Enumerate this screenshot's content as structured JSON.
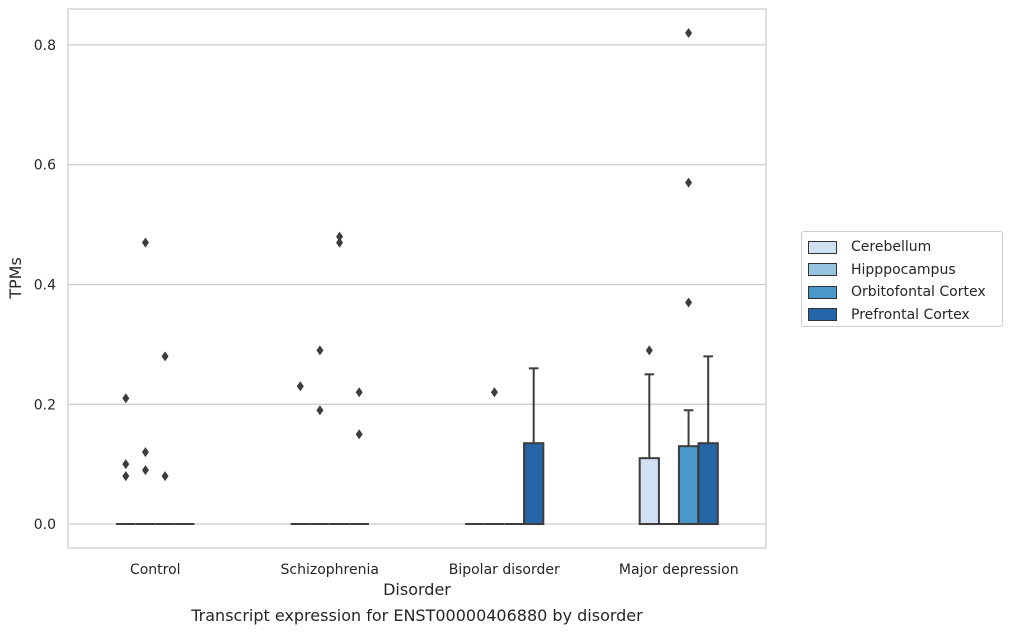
{
  "chart_data": {
    "type": "box",
    "title": "",
    "caption": "Transcript expression for ENST00000406880 by disorder",
    "xlabel": "Disorder",
    "ylabel": "TPMs",
    "ylim": [
      -0.04,
      0.86
    ],
    "yticks": [
      "0.0",
      "0.2",
      "0.4",
      "0.6",
      "0.8"
    ],
    "grid": "horizontal",
    "legend_position": "right",
    "categories": [
      "Control",
      "Schizophrenia",
      "Bipolar disorder",
      "Major depression"
    ],
    "series": [
      {
        "name": "Cerebellum",
        "color": "#d0e1f2",
        "boxes": [
          {
            "q1": 0,
            "q3": 0,
            "median": 0,
            "whisker_high": 0,
            "outliers": [
              0.1,
              0.08,
              0.21
            ]
          },
          {
            "q1": 0,
            "q3": 0,
            "median": 0,
            "whisker_high": 0,
            "outliers": [
              0.23
            ]
          },
          {
            "q1": 0,
            "q3": 0,
            "median": 0,
            "whisker_high": 0,
            "outliers": []
          },
          {
            "q1": 0,
            "q3": 0.11,
            "median": 0,
            "whisker_high": 0.25,
            "outliers": [
              0.29
            ]
          }
        ]
      },
      {
        "name": "Hipppocampus",
        "color": "#94c4df",
        "boxes": [
          {
            "q1": 0,
            "q3": 0,
            "median": 0,
            "whisker_high": 0,
            "outliers": [
              0.47,
              0.12,
              0.09
            ]
          },
          {
            "q1": 0,
            "q3": 0,
            "median": 0,
            "whisker_high": 0,
            "outliers": [
              0.29,
              0.19
            ]
          },
          {
            "q1": 0,
            "q3": 0,
            "median": 0,
            "whisker_high": 0,
            "outliers": [
              0.22
            ]
          },
          {
            "q1": 0,
            "q3": 0,
            "median": 0,
            "whisker_high": 0,
            "outliers": []
          }
        ]
      },
      {
        "name": "Orbitofontal Cortex",
        "color": "#4a98c9",
        "boxes": [
          {
            "q1": 0,
            "q3": 0,
            "median": 0,
            "whisker_high": 0,
            "outliers": [
              0.28,
              0.08
            ]
          },
          {
            "q1": 0,
            "q3": 0,
            "median": 0,
            "whisker_high": 0,
            "outliers": [
              0.48,
              0.47
            ]
          },
          {
            "q1": 0,
            "q3": 0,
            "median": 0,
            "whisker_high": 0,
            "outliers": []
          },
          {
            "q1": 0,
            "q3": 0.13,
            "median": 0,
            "whisker_high": 0.19,
            "outliers": [
              0.82,
              0.57,
              0.37
            ]
          }
        ]
      },
      {
        "name": "Prefrontal Cortex",
        "color": "#2565a8",
        "boxes": [
          {
            "q1": 0,
            "q3": 0,
            "median": 0,
            "whisker_high": 0,
            "outliers": []
          },
          {
            "q1": 0,
            "q3": 0,
            "median": 0,
            "whisker_high": 0,
            "outliers": [
              0.22,
              0.15
            ]
          },
          {
            "q1": 0,
            "q3": 0.135,
            "median": 0,
            "whisker_high": 0.26,
            "outliers": []
          },
          {
            "q1": 0,
            "q3": 0.135,
            "median": 0,
            "whisker_high": 0.28,
            "outliers": []
          }
        ]
      }
    ]
  }
}
